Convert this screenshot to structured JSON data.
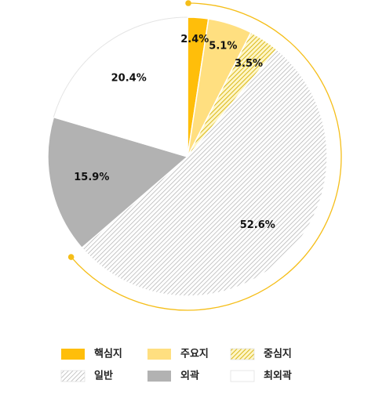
{
  "chart_data": {
    "type": "pie",
    "start": "top",
    "direction": "clockwise",
    "slices": [
      {
        "label": "핵심지",
        "value": 2.4,
        "value_label": "2.4%",
        "fill": "#FFBE0A",
        "pattern": "solid"
      },
      {
        "label": "주요지",
        "value": 5.1,
        "value_label": "5.1%",
        "fill": "#FFDF80",
        "pattern": "solid"
      },
      {
        "label": "중심지",
        "value": 3.5,
        "value_label": "3.5%",
        "fill": "#E2C828",
        "pattern": "hatch"
      },
      {
        "label": "일반",
        "value": 52.6,
        "value_label": "52.6%",
        "fill": "#9A9A9A",
        "pattern": "hatch"
      },
      {
        "label": "외곽",
        "value": 15.9,
        "value_label": "15.9%",
        "fill": "#B2B2B2",
        "pattern": "solid"
      },
      {
        "label": "최외곽",
        "value": 20.4,
        "value_label": "20.4%",
        "fill": "#FFFFFF",
        "pattern": "solid"
      }
    ],
    "legend": {
      "placement": "bottom",
      "items": [
        "핵심지",
        "주요지",
        "중심지",
        "일반",
        "외곽",
        "최외곽"
      ]
    },
    "bracket_arc": {
      "color": "#F5BE19",
      "spans": [
        "핵심지",
        "주요지",
        "중심지",
        "일반"
      ]
    }
  }
}
